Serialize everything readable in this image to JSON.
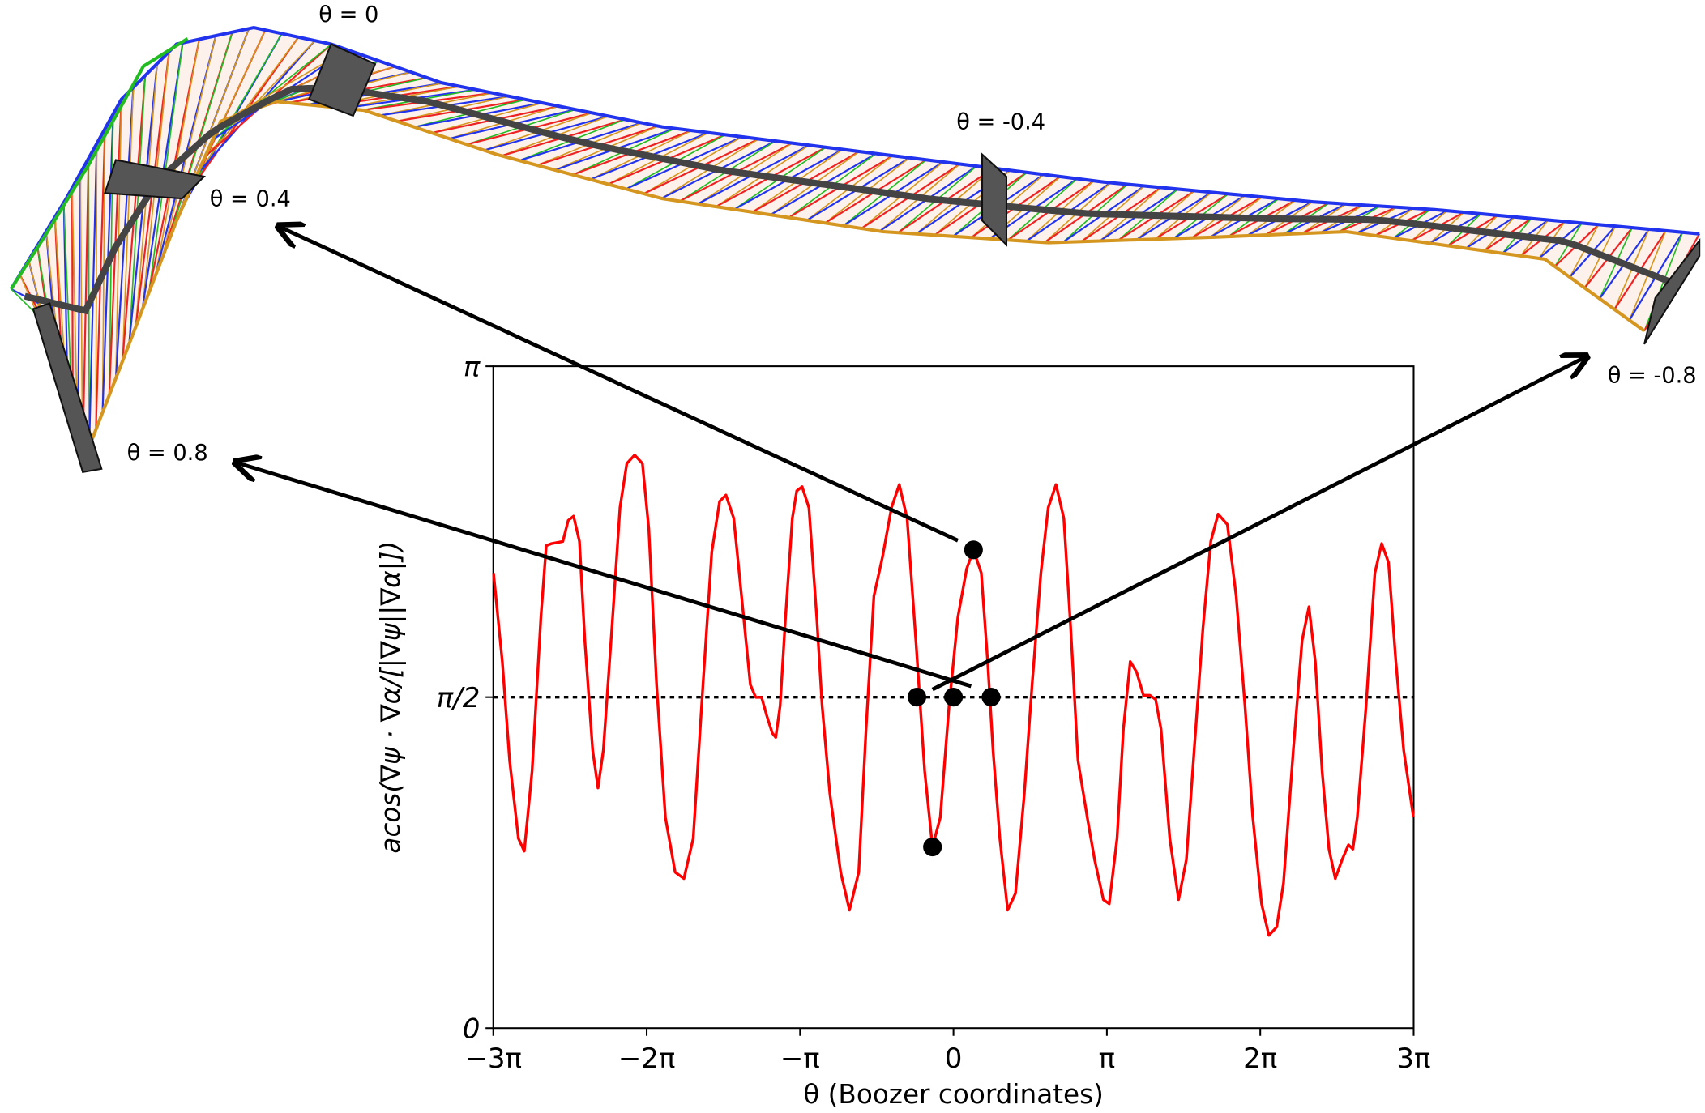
{
  "chart_data": {
    "type": "line",
    "xlabel": "θ (Boozer coordinates)",
    "ylabel": "acos(∇ψ · ∇α/[|∇ψ||∇α|])",
    "color": "red",
    "x": [
      -9.42,
      -9.24,
      -9.09,
      -8.91,
      -8.79,
      -8.63,
      -8.45,
      -8.34,
      -8.23,
      -8.0,
      -7.89,
      -7.78,
      -7.66,
      -7.55,
      -7.39,
      -7.28,
      -7.17,
      -6.98,
      -6.83,
      -6.69,
      -6.53,
      -6.37,
      -6.24,
      -6.08,
      -5.9,
      -5.7,
      -5.52,
      -5.33,
      -5.13,
      -4.95,
      -4.79,
      -4.66,
      -4.5,
      -4.34,
      -4.16,
      -4.05,
      -3.93,
      -3.82,
      -3.71,
      -3.64,
      -3.55,
      -3.44,
      -3.3,
      -3.21,
      -3.1,
      -2.96,
      -2.8,
      -2.69,
      -2.53,
      -2.31,
      -2.13,
      -1.94,
      -1.79,
      -1.63,
      -1.45,
      -1.27,
      -1.11,
      -0.95,
      -0.77,
      -0.59,
      -0.43,
      -0.27,
      -0.09,
      0.09,
      0.27,
      0.41,
      0.57,
      0.7,
      0.81,
      0.95,
      1.11,
      1.27,
      1.45,
      1.61,
      1.79,
      1.94,
      2.1,
      2.26,
      2.4,
      2.55,
      2.74,
      2.89,
      3.07,
      3.19,
      3.35,
      3.48,
      3.62,
      3.75,
      3.89,
      4.02,
      4.14,
      4.25,
      4.43,
      4.61,
      4.77,
      4.93,
      5.11,
      5.27,
      5.42,
      5.61,
      5.79,
      5.97,
      6.13,
      6.31,
      6.46,
      6.62,
      6.76,
      6.96,
      7.14,
      7.28,
      7.41,
      7.55,
      7.69,
      7.82,
      7.96,
      8.09,
      8.18,
      8.27,
      8.45,
      8.63,
      8.77,
      8.91,
      9.06,
      9.22,
      9.42
    ],
    "values": [
      2.16,
      1.74,
      1.27,
      0.9,
      0.84,
      1.22,
      1.95,
      2.29,
      2.3,
      2.31,
      2.41,
      2.43,
      2.31,
      1.84,
      1.32,
      1.14,
      1.32,
      1.95,
      2.47,
      2.68,
      2.72,
      2.68,
      2.37,
      1.63,
      1.0,
      0.74,
      0.71,
      0.9,
      1.63,
      2.26,
      2.5,
      2.53,
      2.42,
      2.05,
      1.63,
      1.57,
      1.57,
      1.48,
      1.4,
      1.38,
      1.53,
      1.95,
      2.42,
      2.55,
      2.57,
      2.47,
      1.95,
      1.53,
      1.11,
      0.74,
      0.56,
      0.74,
      1.42,
      2.05,
      2.24,
      2.47,
      2.58,
      2.42,
      1.84,
      1.22,
      0.86,
      1.0,
      1.53,
      1.95,
      2.18,
      2.27,
      2.16,
      1.74,
      1.32,
      0.9,
      0.56,
      0.64,
      1.11,
      1.63,
      2.16,
      2.47,
      2.58,
      2.42,
      1.9,
      1.27,
      1.0,
      0.8,
      0.61,
      0.59,
      0.9,
      1.42,
      1.74,
      1.69,
      1.58,
      1.58,
      1.56,
      1.42,
      0.9,
      0.61,
      0.8,
      1.32,
      1.9,
      2.31,
      2.44,
      2.39,
      2.05,
      1.53,
      1.0,
      0.59,
      0.44,
      0.48,
      0.69,
      1.32,
      1.84,
      2.0,
      1.74,
      1.22,
      0.85,
      0.71,
      0.8,
      0.87,
      0.85,
      1.0,
      1.53,
      2.16,
      2.3,
      2.21,
      1.74,
      1.32,
      1.0
    ],
    "points": {
      "color": "black",
      "x": [
        -0.75,
        0,
        0.77,
        -0.43,
        0.41
      ],
      "values": [
        1.571,
        1.571,
        1.571,
        0.86,
        2.27
      ]
    },
    "reference_line": 1.5708,
    "xlim": [
      -9.42478,
      9.42478
    ],
    "ylim": [
      0,
      3.14159
    ],
    "xticks": [
      {
        "value": -9.42478,
        "label": "−3π"
      },
      {
        "value": -6.28319,
        "label": "−2π"
      },
      {
        "value": -3.14159,
        "label": "−π"
      },
      0,
      {
        "value": 3.14159,
        "label": "π"
      },
      {
        "value": 6.28319,
        "label": "2π"
      },
      {
        "value": 9.42478,
        "label": "3π"
      }
    ],
    "yticks": [
      0,
      {
        "value": 1.5708,
        "label": "π/2"
      },
      {
        "value": 3.14159,
        "label": "π"
      }
    ],
    "annotations": [
      "θ = 0",
      "θ = 0.4",
      "θ = -0.4",
      "θ = 0.8",
      "θ = -0.8"
    ]
  }
}
